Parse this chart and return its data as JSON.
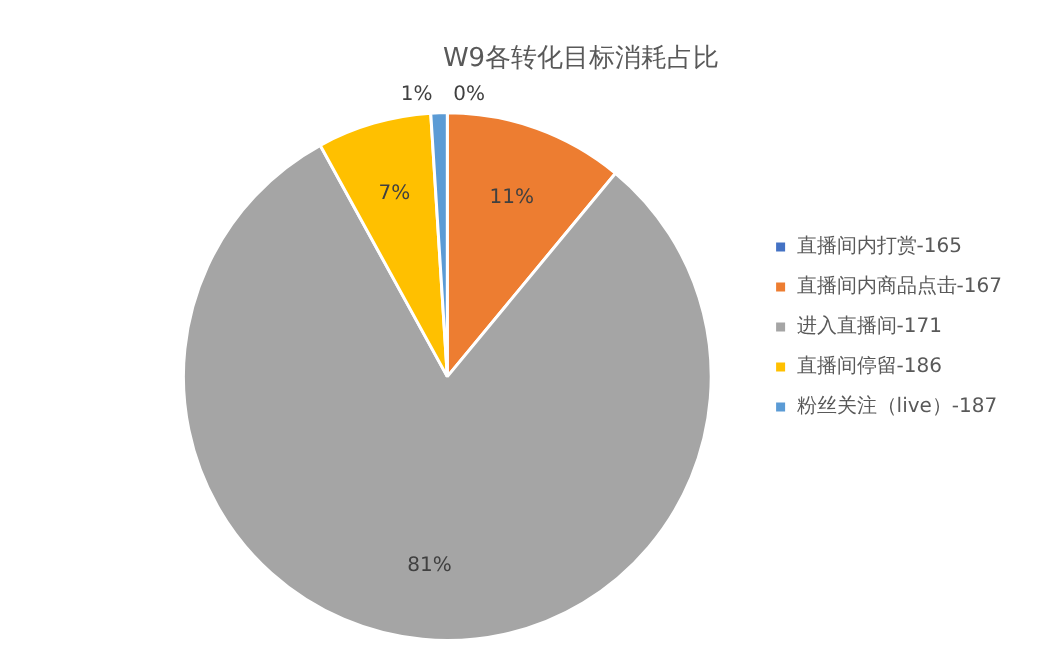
{
  "chart_data": {
    "type": "pie",
    "title": "W9各转化目标消耗占比",
    "categories": [
      "直播间内打赏-165",
      "直播间内商品点击-167",
      "进入直播间-171",
      "直播间停留-186",
      "粉丝关注（live）-187"
    ],
    "values": [
      0,
      11,
      81,
      7,
      1
    ],
    "colors": [
      "#4472c4",
      "#ed7d31",
      "#a5a5a5",
      "#ffc000",
      "#5b9bd5"
    ],
    "value_labels": [
      "0%",
      "11%",
      "81%",
      "7%",
      "1%"
    ],
    "legend": "right"
  }
}
